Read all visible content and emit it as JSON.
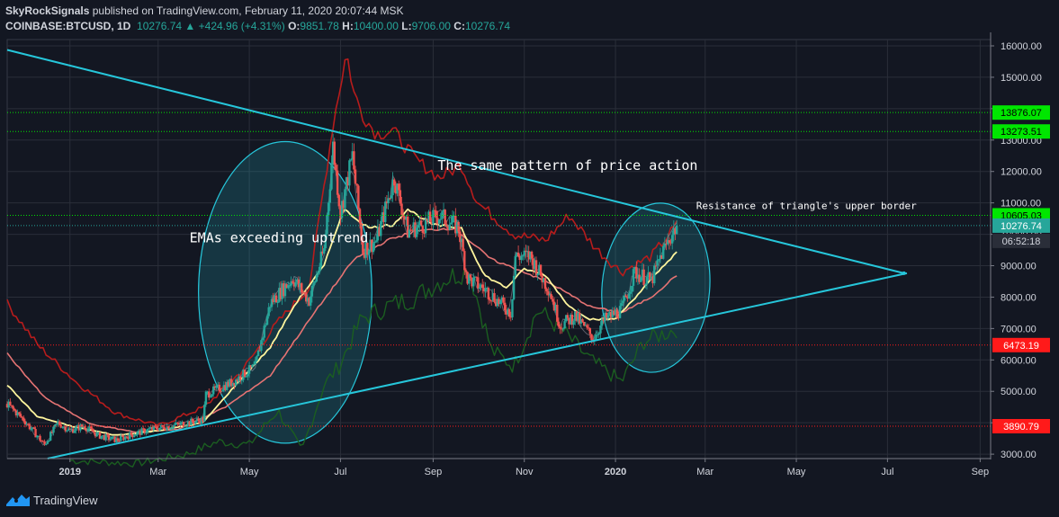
{
  "header": {
    "publisher": "SkyRockSignals",
    "published_text": "published on TradingView.com, February 11, 2020 20:07:44 MSK",
    "symbol": "COINBASE:BTCUSD, 1D",
    "last": "10276.74",
    "change_arrow": "▲",
    "change": "+424.96 (+4.31%)",
    "o_label": "O:",
    "o": "9851.78",
    "h_label": "H:",
    "h": "10400.00",
    "l_label": "L:",
    "l": "9706.00",
    "c_label": "C:",
    "c": "10276.74"
  },
  "footer": {
    "brand": "TradingView",
    "logo_icon": "tradingview-logo-icon"
  },
  "colors": {
    "background": "#131722",
    "grid": "#2a2e39",
    "candle_up": "#26a69a",
    "candle_down": "#ef5350",
    "ema_fast": "#fff59d",
    "ema_slow": "#e57373",
    "dark_red": "#b71c1c",
    "dark_green": "#1b5e20",
    "trendline": "#26c6da",
    "ellipse_fill": "rgba(38,198,218,0.18)",
    "axis_text": "#d1d4dc"
  },
  "chart_data": {
    "type": "candlestick",
    "title": "",
    "x_ticks": [
      "2019",
      "Mar",
      "May",
      "Jul",
      "Sep",
      "Nov",
      "2020",
      "Mar",
      "May",
      "Jul",
      "Sep"
    ],
    "y_ticks": [
      "16000.00",
      "15000.00",
      "14000.00",
      "13000.00",
      "12000.00",
      "11000.00",
      "10000.00",
      "9000.00",
      "8000.00",
      "7000.00",
      "6000.00",
      "5000.00",
      "4000.00",
      "3000.00"
    ],
    "ylim": [
      2860,
      16200
    ],
    "xlim": [
      "2018-11-20",
      "2020-09-08"
    ],
    "price_labels": [
      {
        "value": 13876.07,
        "text": "13876.07",
        "color": "#00e600",
        "text_color": "#000000",
        "line": "dotted-green"
      },
      {
        "value": 13273.51,
        "text": "13273.51",
        "color": "#00e600",
        "text_color": "#000000",
        "line": "dotted-green"
      },
      {
        "value": 10605.03,
        "text": "10605.03",
        "color": "#00e600",
        "text_color": "#000000",
        "line": "dotted-green"
      },
      {
        "value": 10276.74,
        "text": "10276.74",
        "color": "#26a69a",
        "text_color": "#ffffff",
        "line": "dotted-teal"
      },
      {
        "value": 9790,
        "text": "06:52:18",
        "color": "#2a2e39",
        "text_color": "#d1d4dc",
        "line": "none"
      },
      {
        "value": 6473.19,
        "text": "6473.19",
        "color": "#ff1a1a",
        "text_color": "#ffffff",
        "line": "dotted-red"
      },
      {
        "value": 3890.79,
        "text": "3890.79",
        "color": "#ff1a1a",
        "text_color": "#ffffff",
        "line": "dotted-red"
      }
    ],
    "annotations": [
      {
        "text": "The same pattern of price action",
        "date": "2019-09-04",
        "price": 12050,
        "size": 15
      },
      {
        "text": "EMAs exceeding uptrend",
        "date": "2019-03-22",
        "price": 9750,
        "size": 15
      },
      {
        "text": "Resistance of triangle's upper border",
        "date": "2020-02-24",
        "price": 10800,
        "size": 11
      }
    ],
    "trendlines": [
      {
        "name": "upper-triangle-line",
        "from": [
          "2018-11-20",
          15870
        ],
        "to": [
          "2020-07-12",
          8760
        ]
      },
      {
        "name": "lower-triangle-line",
        "from": [
          "2018-12-17",
          2860
        ],
        "to": [
          "2020-07-14",
          8760
        ]
      }
    ],
    "ellipses": [
      {
        "name": "ellipse-2019-rally",
        "center": [
          "2019-05-25",
          8150
        ],
        "rx_days": 58,
        "ry_price": 4800,
        "angle": -55
      },
      {
        "name": "ellipse-2020-rally",
        "center": [
          "2020-01-28",
          8300
        ],
        "rx_days": 36,
        "ry_price": 2700,
        "angle": -50
      }
    ],
    "price_path": [
      [
        "2018-11-20",
        4600
      ],
      [
        "2018-12-01",
        4100
      ],
      [
        "2018-12-15",
        3300
      ],
      [
        "2018-12-24",
        4000
      ],
      [
        "2019-01-01",
        3750
      ],
      [
        "2019-01-10",
        3900
      ],
      [
        "2019-01-20",
        3600
      ],
      [
        "2019-02-01",
        3450
      ],
      [
        "2019-02-10",
        3600
      ],
      [
        "2019-02-24",
        3800
      ],
      [
        "2019-03-10",
        3900
      ],
      [
        "2019-03-31",
        4100
      ],
      [
        "2019-04-02",
        4900
      ],
      [
        "2019-04-20",
        5300
      ],
      [
        "2019-05-05",
        5800
      ],
      [
        "2019-05-15",
        7800
      ],
      [
        "2019-05-30",
        8600
      ],
      [
        "2019-06-10",
        7900
      ],
      [
        "2019-06-20",
        9500
      ],
      [
        "2019-06-26",
        12800
      ],
      [
        "2019-07-01",
        10700
      ],
      [
        "2019-07-09",
        12500
      ],
      [
        "2019-07-16",
        9500
      ],
      [
        "2019-07-25",
        9800
      ],
      [
        "2019-08-06",
        11800
      ],
      [
        "2019-08-15",
        10100
      ],
      [
        "2019-08-25",
        10300
      ],
      [
        "2019-09-05",
        10600
      ],
      [
        "2019-09-18",
        10200
      ],
      [
        "2019-09-24",
        8600
      ],
      [
        "2019-10-07",
        8200
      ],
      [
        "2019-10-23",
        7500
      ],
      [
        "2019-10-26",
        9300
      ],
      [
        "2019-11-05",
        9300
      ],
      [
        "2019-11-18",
        8200
      ],
      [
        "2019-11-25",
        7100
      ],
      [
        "2019-12-05",
        7400
      ],
      [
        "2019-12-17",
        6700
      ],
      [
        "2019-12-25",
        7300
      ],
      [
        "2020-01-05",
        7600
      ],
      [
        "2020-01-14",
        8800
      ],
      [
        "2020-01-25",
        8500
      ],
      [
        "2020-02-01",
        9400
      ],
      [
        "2020-02-11",
        10276.74
      ]
    ],
    "ema_fast_path": [
      [
        "2018-11-20",
        5200
      ],
      [
        "2018-12-10",
        4200
      ],
      [
        "2019-01-01",
        3900
      ],
      [
        "2019-02-01",
        3600
      ],
      [
        "2019-03-01",
        3750
      ],
      [
        "2019-03-31",
        4000
      ],
      [
        "2019-04-20",
        5100
      ],
      [
        "2019-05-15",
        6400
      ],
      [
        "2019-06-01",
        7800
      ],
      [
        "2019-06-20",
        9000
      ],
      [
        "2019-07-03",
        10800
      ],
      [
        "2019-07-20",
        10200
      ],
      [
        "2019-08-05",
        10300
      ],
      [
        "2019-08-15",
        10800
      ],
      [
        "2019-09-01",
        10300
      ],
      [
        "2019-09-20",
        10200
      ],
      [
        "2019-10-05",
        8700
      ],
      [
        "2019-10-20",
        8300
      ],
      [
        "2019-11-01",
        8900
      ],
      [
        "2019-11-15",
        8700
      ],
      [
        "2019-12-01",
        7700
      ],
      [
        "2019-12-15",
        7300
      ],
      [
        "2020-01-01",
        7300
      ],
      [
        "2020-01-20",
        8300
      ],
      [
        "2020-02-11",
        9450
      ]
    ],
    "ema_slow_path": [
      [
        "2018-11-20",
        6200
      ],
      [
        "2018-12-15",
        4800
      ],
      [
        "2019-01-15",
        3950
      ],
      [
        "2019-02-15",
        3700
      ],
      [
        "2019-03-15",
        3800
      ],
      [
        "2019-04-15",
        4500
      ],
      [
        "2019-05-15",
        5500
      ],
      [
        "2019-06-15",
        7600
      ],
      [
        "2019-07-10",
        9200
      ],
      [
        "2019-08-01",
        9800
      ],
      [
        "2019-08-20",
        10100
      ],
      [
        "2019-09-15",
        10200
      ],
      [
        "2019-10-10",
        9200
      ],
      [
        "2019-11-01",
        8800
      ],
      [
        "2019-11-20",
        8400
      ],
      [
        "2019-12-15",
        7700
      ],
      [
        "2020-01-05",
        7500
      ],
      [
        "2020-01-25",
        8000
      ],
      [
        "2020-02-11",
        8700
      ]
    ],
    "dark_red_path": [
      [
        "2018-11-20",
        7800
      ],
      [
        "2018-12-10",
        6500
      ],
      [
        "2019-01-05",
        5300
      ],
      [
        "2019-02-01",
        4300
      ],
      [
        "2019-03-01",
        3900
      ],
      [
        "2019-04-01",
        4500
      ],
      [
        "2019-04-25",
        5600
      ],
      [
        "2019-05-20",
        7200
      ],
      [
        "2019-06-10",
        8300
      ],
      [
        "2019-06-26",
        13500
      ],
      [
        "2019-07-05",
        15800
      ],
      [
        "2019-07-10",
        14500
      ],
      [
        "2019-07-16",
        13800
      ],
      [
        "2019-07-25",
        13200
      ],
      [
        "2019-08-05",
        13300
      ],
      [
        "2019-08-20",
        12400
      ],
      [
        "2019-09-05",
        11800
      ],
      [
        "2019-09-20",
        12200
      ],
      [
        "2019-10-01",
        11000
      ],
      [
        "2019-10-25",
        10000
      ],
      [
        "2019-11-15",
        9800
      ],
      [
        "2019-12-01",
        10600
      ],
      [
        "2019-12-20",
        9500
      ],
      [
        "2020-01-05",
        8800
      ],
      [
        "2020-01-25",
        9300
      ],
      [
        "2020-02-11",
        10300
      ]
    ],
    "dark_green_path": [
      [
        "2019-01-01",
        2800
      ],
      [
        "2019-02-15",
        2700
      ],
      [
        "2019-03-20",
        3000
      ],
      [
        "2019-04-10",
        3400
      ],
      [
        "2019-05-01",
        3300
      ],
      [
        "2019-05-20",
        4400
      ],
      [
        "2019-06-05",
        3100
      ],
      [
        "2019-06-20",
        5200
      ],
      [
        "2019-06-30",
        5800
      ],
      [
        "2019-07-15",
        7300
      ],
      [
        "2019-08-01",
        7700
      ],
      [
        "2019-08-20",
        8000
      ],
      [
        "2019-09-05",
        8500
      ],
      [
        "2019-09-25",
        8900
      ],
      [
        "2019-10-10",
        6300
      ],
      [
        "2019-10-25",
        5800
      ],
      [
        "2019-11-10",
        7600
      ],
      [
        "2019-11-25",
        7000
      ],
      [
        "2019-12-15",
        6000
      ],
      [
        "2020-01-05",
        5300
      ],
      [
        "2020-01-20",
        6600
      ],
      [
        "2020-02-11",
        7000
      ]
    ]
  }
}
